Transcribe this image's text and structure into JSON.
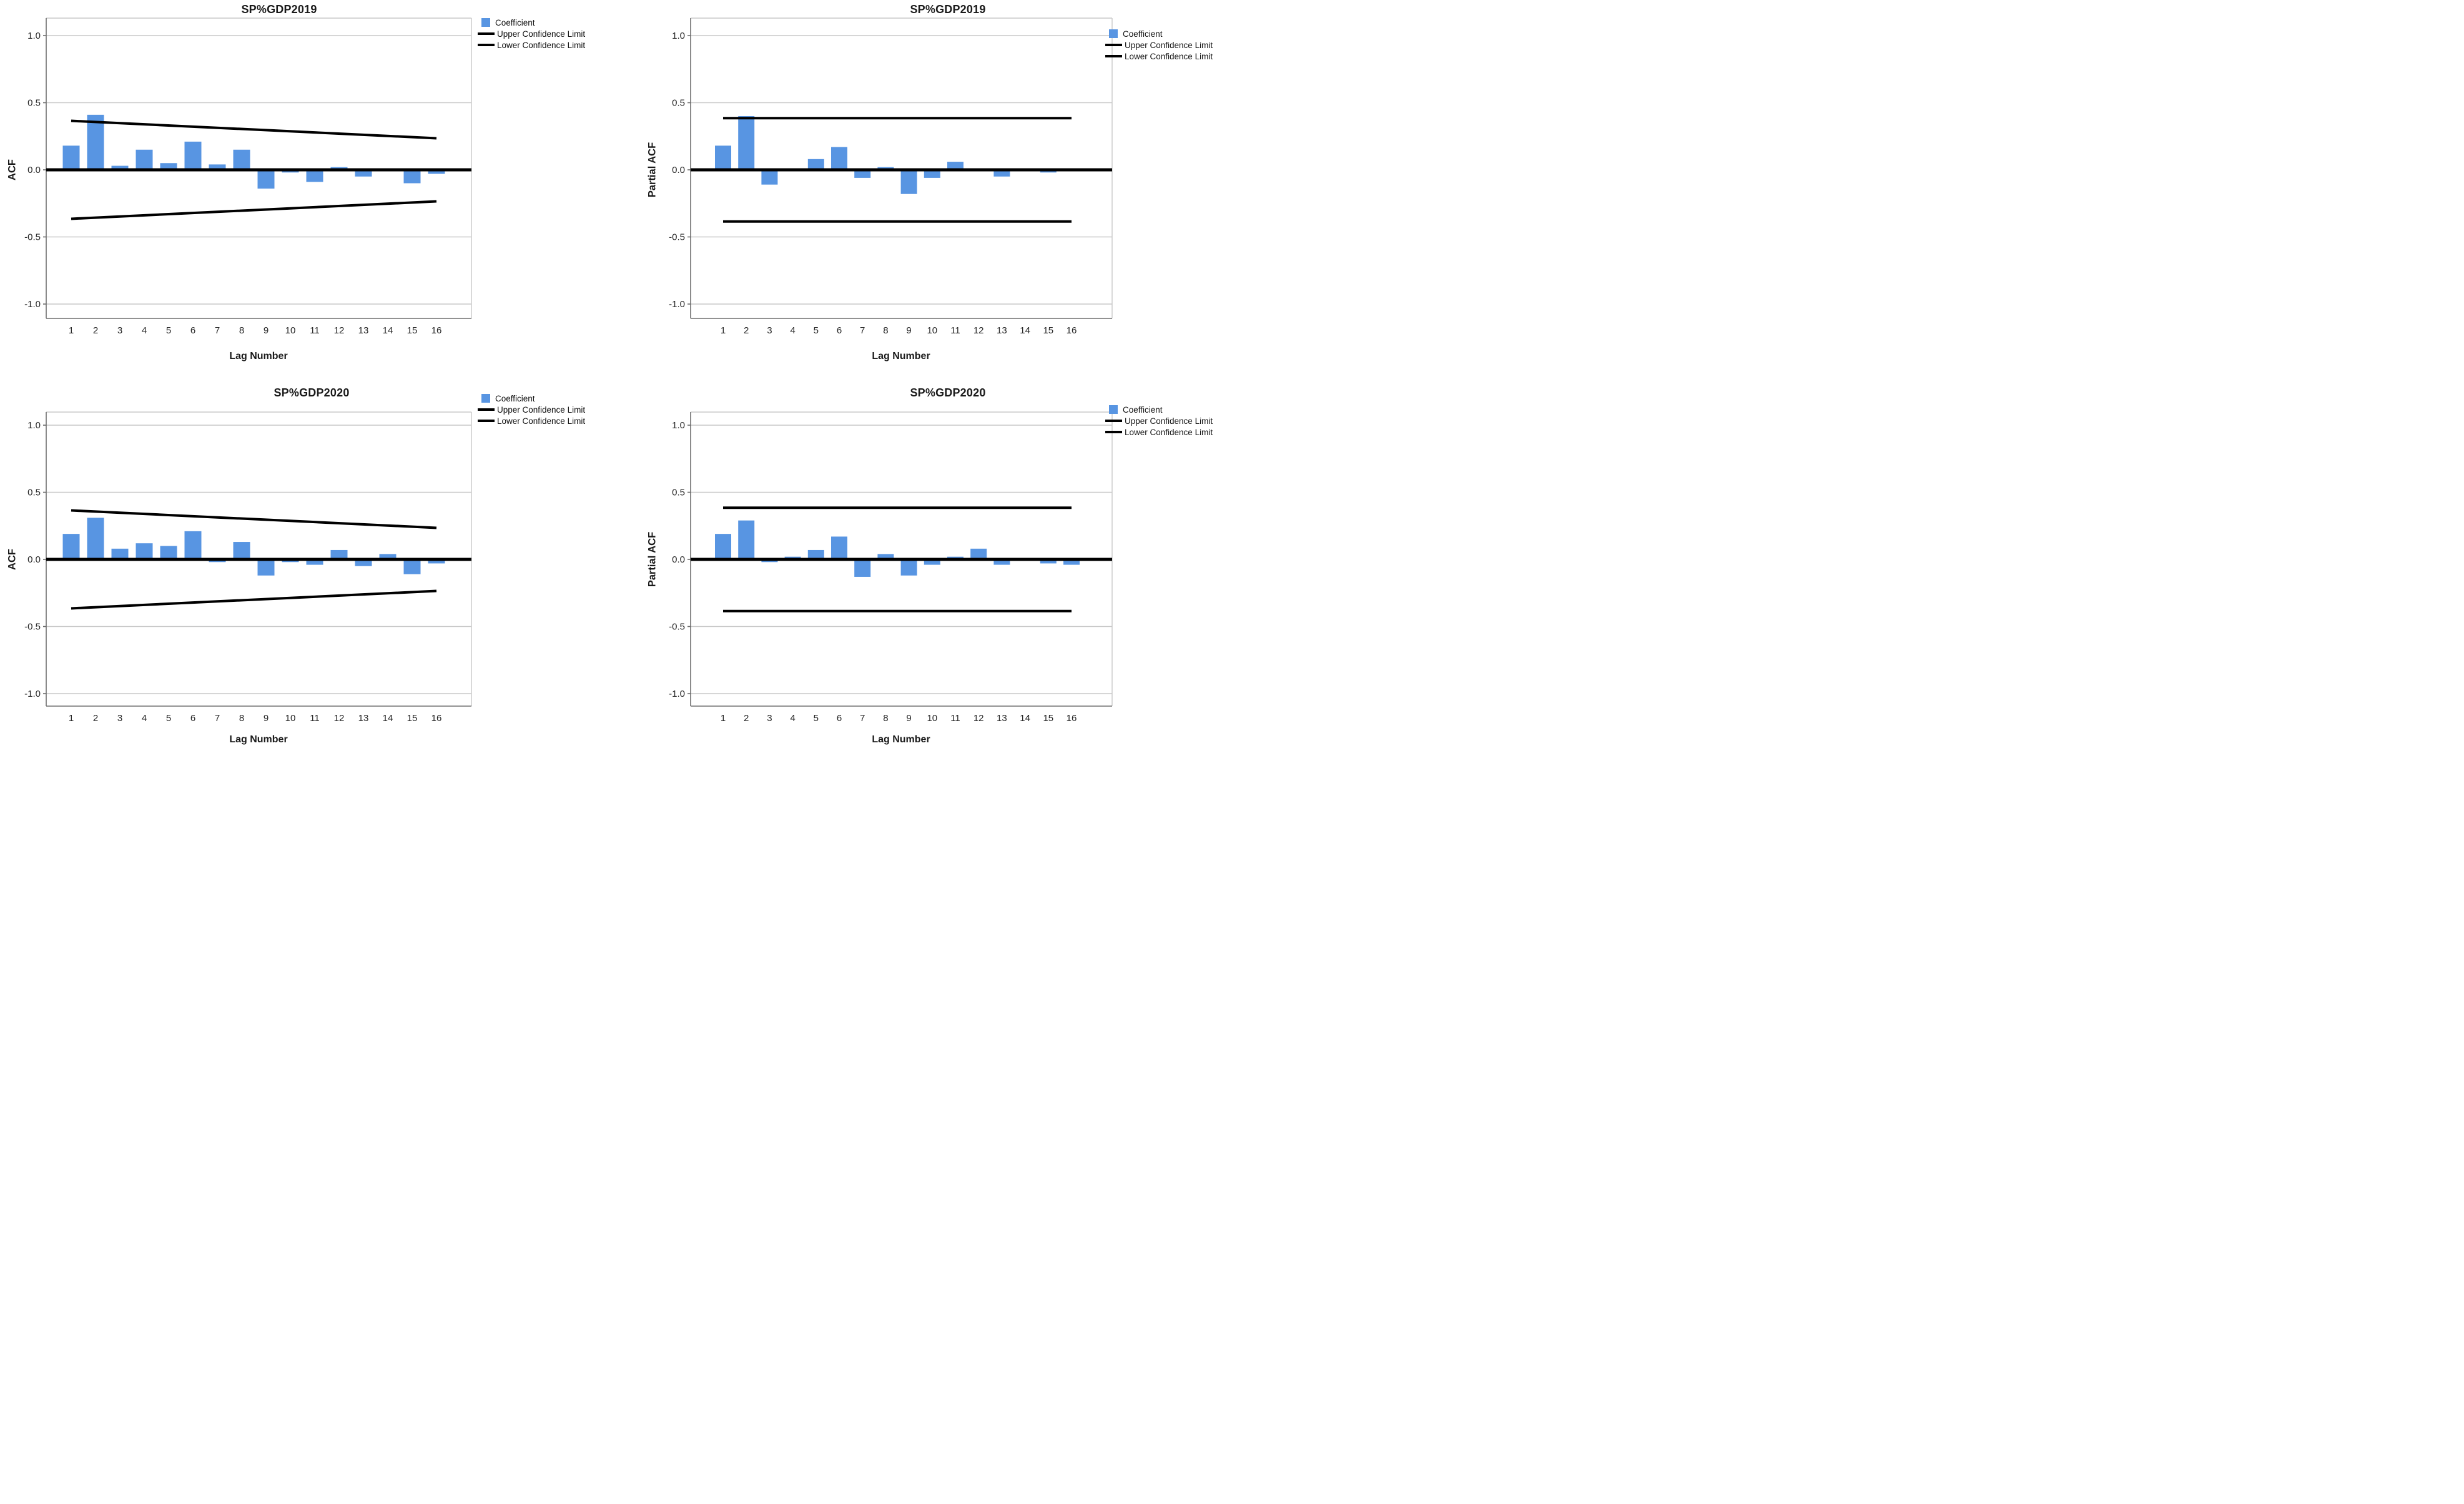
{
  "page": {
    "background": "#ffffff"
  },
  "legend": {
    "items": [
      "Coefficient",
      "Upper Confidence Limit",
      "Lower Confidence Limit"
    ],
    "coefficient_color": "#5895E2",
    "line_color": "#000000"
  },
  "axis": {
    "y_ticks": [
      "1.0",
      "0.5",
      "0.0",
      "-0.5",
      "-1.0"
    ],
    "y_tick_values": [
      1.0,
      0.5,
      0.0,
      -0.5,
      -1.0
    ],
    "x_label": "Lag Number"
  },
  "chart_data": [
    {
      "type": "bar",
      "title": "SP%GDP2019",
      "ylabel": "ACF",
      "xlabel": "Lag Number",
      "categories": [
        1,
        2,
        3,
        4,
        5,
        6,
        7,
        8,
        9,
        10,
        11,
        12,
        13,
        14,
        15,
        16
      ],
      "values": [
        0.18,
        0.41,
        0.03,
        0.15,
        0.05,
        0.21,
        0.04,
        0.15,
        -0.14,
        -0.02,
        -0.09,
        0.02,
        -0.05,
        -0.01,
        -0.1,
        -0.03
      ],
      "confidence_limits": {
        "shape": "tapered",
        "upper_at_lag1": 0.365,
        "upper_at_lag16": 0.235,
        "lower_at_lag1": -0.365,
        "lower_at_lag16": -0.235
      },
      "ylim": [
        -1.1,
        1.1
      ],
      "grid": "horizontal",
      "legend_position": "top-right",
      "legend": [
        "Coefficient",
        "Upper Confidence Limit",
        "Lower Confidence Limit"
      ]
    },
    {
      "type": "bar",
      "title": "SP%GDP2019",
      "ylabel": "Partial ACF",
      "xlabel": "Lag Number",
      "categories": [
        1,
        2,
        3,
        4,
        5,
        6,
        7,
        8,
        9,
        10,
        11,
        12,
        13,
        14,
        15,
        16
      ],
      "values": [
        0.18,
        0.4,
        -0.11,
        0.0,
        0.08,
        0.17,
        -0.06,
        0.02,
        -0.18,
        -0.06,
        0.06,
        0.0,
        -0.05,
        0.0,
        -0.02,
        0.0
      ],
      "confidence_limits": {
        "shape": "constant",
        "upper_at_lag1": 0.385,
        "upper_at_lag16": 0.385,
        "lower_at_lag1": -0.385,
        "lower_at_lag16": -0.385
      },
      "ylim": [
        -1.1,
        1.1
      ],
      "grid": "horizontal",
      "legend_position": "top-right",
      "legend": [
        "Coefficient",
        "Upper Confidence Limit",
        "Lower Confidence Limit"
      ]
    },
    {
      "type": "bar",
      "title": "SP%GDP2020",
      "ylabel": "ACF",
      "xlabel": "Lag Number",
      "categories": [
        1,
        2,
        3,
        4,
        5,
        6,
        7,
        8,
        9,
        10,
        11,
        12,
        13,
        14,
        15,
        16
      ],
      "values": [
        0.19,
        0.31,
        0.08,
        0.12,
        0.1,
        0.21,
        -0.02,
        0.13,
        -0.12,
        -0.02,
        -0.04,
        0.07,
        -0.05,
        0.04,
        -0.11,
        -0.03
      ],
      "confidence_limits": {
        "shape": "tapered",
        "upper_at_lag1": 0.365,
        "upper_at_lag16": 0.235,
        "lower_at_lag1": -0.365,
        "lower_at_lag16": -0.235
      },
      "ylim": [
        -1.1,
        1.1
      ],
      "grid": "horizontal",
      "legend_position": "top-right",
      "legend": [
        "Coefficient",
        "Upper Confidence Limit",
        "Lower Confidence Limit"
      ]
    },
    {
      "type": "bar",
      "title": "SP%GDP2020",
      "ylabel": "Partial ACF",
      "xlabel": "Lag Number",
      "categories": [
        1,
        2,
        3,
        4,
        5,
        6,
        7,
        8,
        9,
        10,
        11,
        12,
        13,
        14,
        15,
        16
      ],
      "values": [
        0.19,
        0.29,
        -0.02,
        0.02,
        0.07,
        0.17,
        -0.13,
        0.04,
        -0.12,
        -0.04,
        0.02,
        0.08,
        -0.04,
        0.0,
        -0.03,
        -0.04
      ],
      "confidence_limits": {
        "shape": "constant",
        "upper_at_lag1": 0.385,
        "upper_at_lag16": 0.385,
        "lower_at_lag1": -0.385,
        "lower_at_lag16": -0.385
      },
      "ylim": [
        -1.1,
        1.1
      ],
      "grid": "horizontal",
      "legend_position": "top-right",
      "legend": [
        "Coefficient",
        "Upper Confidence Limit",
        "Lower Confidence Limit"
      ]
    }
  ]
}
